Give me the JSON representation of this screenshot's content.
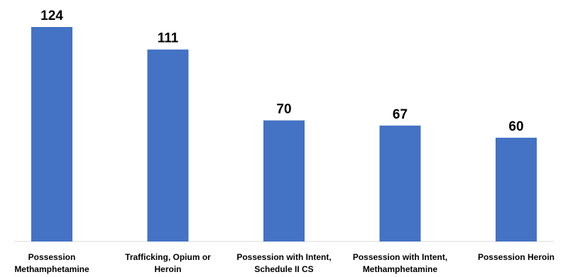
{
  "chart_data": {
    "type": "bar",
    "categories": [
      [
        "Possession",
        "Methamphetamine"
      ],
      [
        "Trafficking, Opium or",
        "Heroin"
      ],
      [
        "Possession with Intent,",
        "Schedule II CS"
      ],
      [
        "Possession with Intent,",
        "Methamphetamine"
      ],
      [
        "Possession Heroin"
      ]
    ],
    "values": [
      124,
      111,
      70,
      67,
      60
    ],
    "data_labels": [
      "124",
      "111",
      "70",
      "67",
      "60"
    ],
    "title": "",
    "xlabel": "",
    "ylabel": "",
    "ylim": [
      0,
      124
    ],
    "grid": false,
    "legend": "none",
    "bar_color": "#4472C4"
  }
}
